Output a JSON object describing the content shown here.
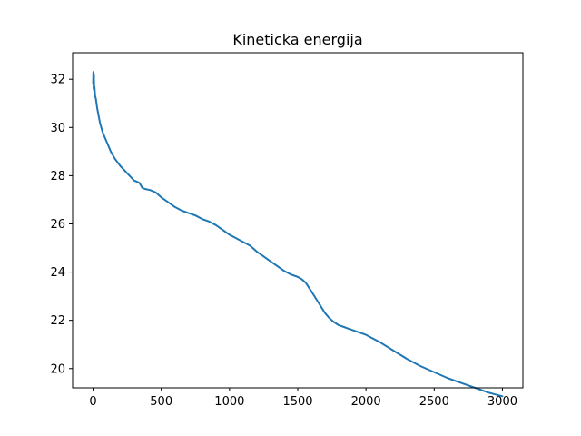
{
  "chart_data": {
    "type": "line",
    "title": "Kineticka energija",
    "xlabel": "",
    "ylabel": "",
    "xlim": [
      -150,
      3150
    ],
    "ylim": [
      19.2,
      33.1
    ],
    "xticks": [
      0,
      500,
      1000,
      1500,
      2000,
      2500,
      3000
    ],
    "yticks": [
      20,
      22,
      24,
      26,
      28,
      30,
      32
    ],
    "xtick_labels": [
      "0",
      "500",
      "1000",
      "1500",
      "2000",
      "2500",
      "3000"
    ],
    "ytick_labels": [
      "20",
      "22",
      "24",
      "26",
      "28",
      "30",
      "32"
    ],
    "grid": false,
    "series": [
      {
        "color": "#1f77b4",
        "x": [
          0,
          2,
          4,
          6,
          8,
          10,
          15,
          20,
          30,
          40,
          50,
          70,
          100,
          130,
          160,
          200,
          250,
          300,
          340,
          360,
          380,
          420,
          460,
          480,
          500,
          550,
          600,
          650,
          700,
          750,
          800,
          850,
          900,
          950,
          1000,
          1050,
          1100,
          1150,
          1200,
          1250,
          1300,
          1350,
          1400,
          1450,
          1500,
          1530,
          1560,
          1600,
          1650,
          1700,
          1730,
          1760,
          1800,
          1850,
          1900,
          1950,
          2000,
          2050,
          2100,
          2200,
          2300,
          2400,
          2500,
          2600,
          2700,
          2800,
          2900,
          3000
        ],
        "y": [
          31.8,
          32.3,
          31.6,
          32.2,
          31.5,
          31.7,
          31.3,
          31.2,
          30.8,
          30.5,
          30.2,
          29.8,
          29.4,
          29.0,
          28.7,
          28.4,
          28.1,
          27.8,
          27.7,
          27.5,
          27.45,
          27.4,
          27.3,
          27.2,
          27.1,
          26.9,
          26.7,
          26.55,
          26.45,
          26.35,
          26.2,
          26.1,
          25.95,
          25.75,
          25.55,
          25.4,
          25.25,
          25.1,
          24.85,
          24.65,
          24.45,
          24.25,
          24.05,
          23.9,
          23.8,
          23.7,
          23.55,
          23.2,
          22.75,
          22.3,
          22.1,
          21.95,
          21.8,
          21.7,
          21.6,
          21.5,
          21.4,
          21.25,
          21.1,
          20.75,
          20.4,
          20.1,
          19.85,
          19.6,
          19.4,
          19.2,
          19.0,
          18.85
        ]
      }
    ]
  }
}
